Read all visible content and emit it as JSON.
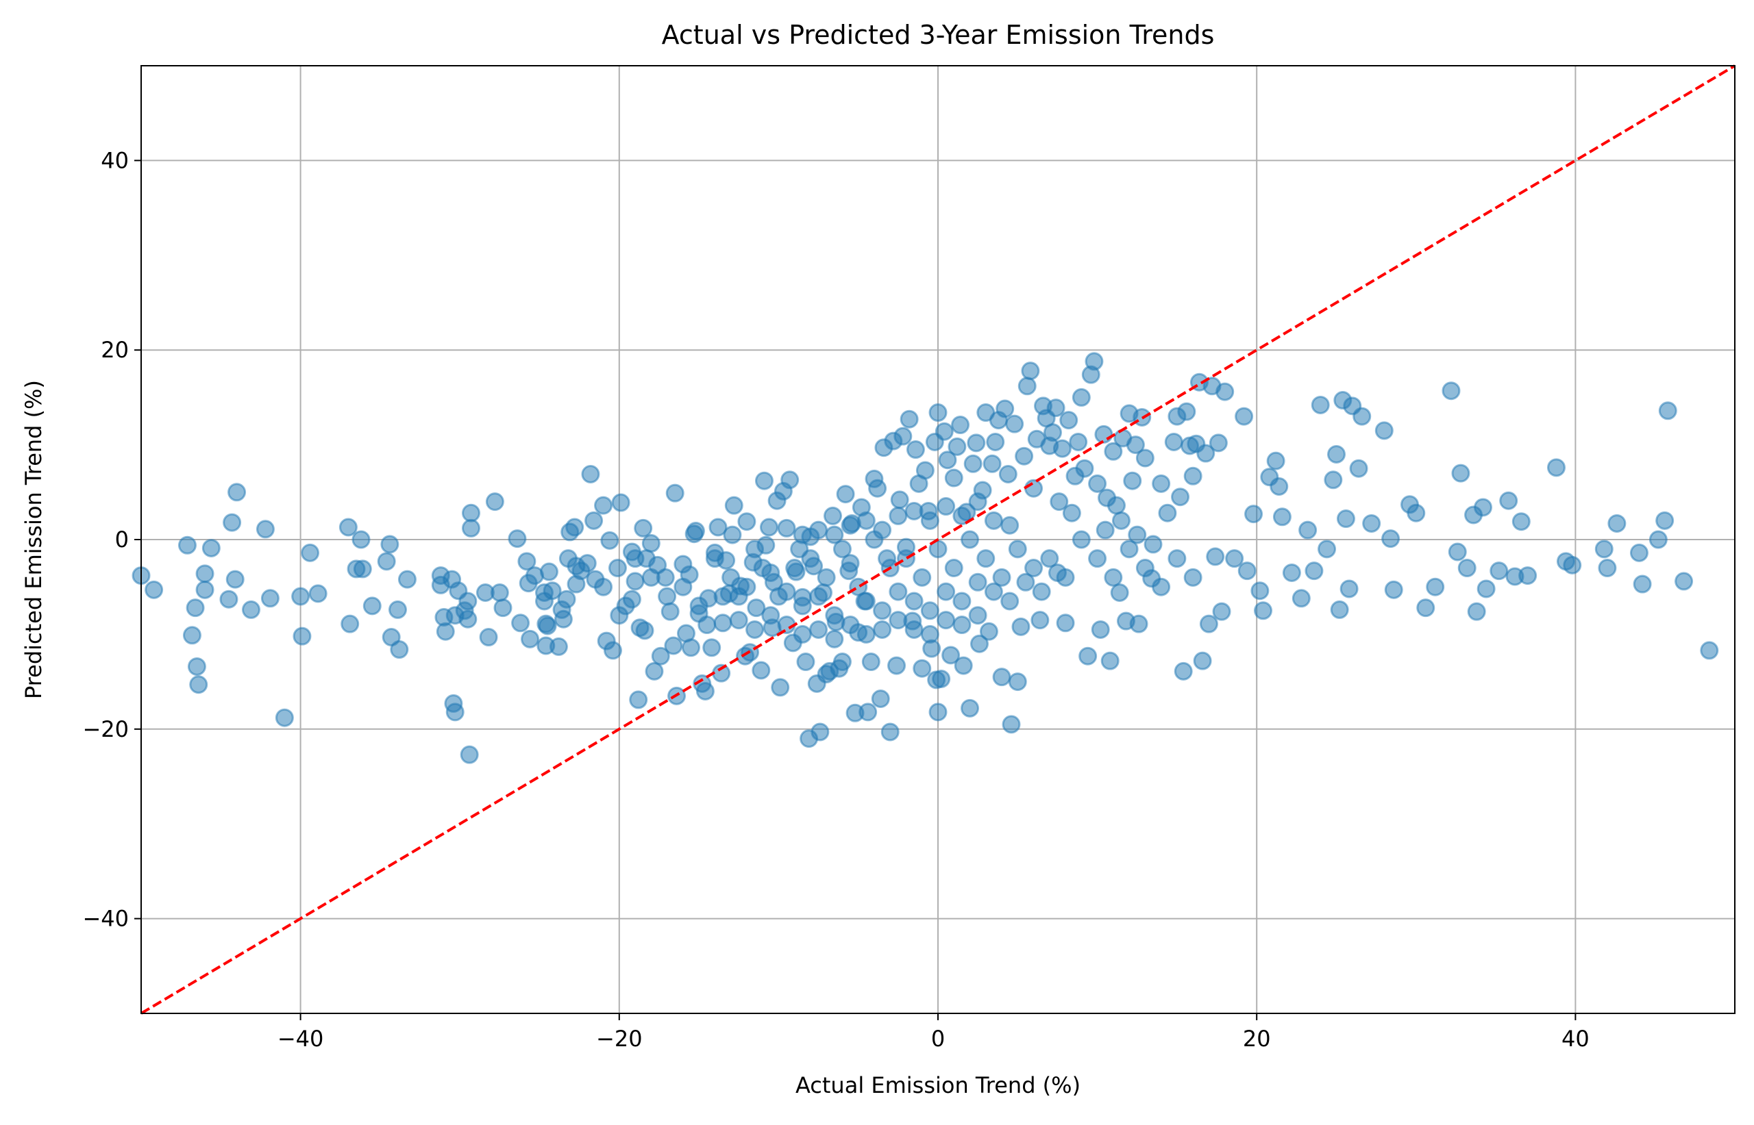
{
  "chart_data": {
    "type": "scatter",
    "title": "Actual vs Predicted 3-Year Emission Trends",
    "xlabel": "Actual Emission Trend (%)",
    "ylabel": "Predicted Emission Trend (%)",
    "xlim": [
      -50,
      50
    ],
    "ylim": [
      -50,
      50
    ],
    "xticks": [
      -40,
      -20,
      0,
      20,
      40
    ],
    "yticks": [
      -40,
      -20,
      0,
      20,
      40
    ],
    "xtick_labels": [
      "−40",
      "−20",
      "0",
      "20",
      "40"
    ],
    "ytick_labels": [
      "−40",
      "−20",
      "0",
      "20",
      "40"
    ],
    "grid": true,
    "marker_color": "#1f77b4",
    "reference_line": {
      "from": [
        -50,
        -50
      ],
      "to": [
        50,
        50
      ],
      "color": "#ff0000",
      "style": "dashed"
    },
    "points": [
      [
        -50,
        -3.8
      ],
      [
        -49.2,
        -5.3
      ],
      [
        -47.1,
        -0.6
      ],
      [
        -46.8,
        -10.1
      ],
      [
        -46.6,
        -7.2
      ],
      [
        -46.5,
        -13.4
      ],
      [
        -46.4,
        -15.3
      ],
      [
        -46.0,
        -3.6
      ],
      [
        -46.0,
        -5.3
      ],
      [
        -45.6,
        -0.9
      ],
      [
        -44.5,
        -6.3
      ],
      [
        -44.3,
        1.8
      ],
      [
        -44.1,
        -4.2
      ],
      [
        -44.0,
        5.0
      ],
      [
        -43.1,
        -7.4
      ],
      [
        -42.2,
        1.1
      ],
      [
        -41.9,
        -6.2
      ],
      [
        -41.0,
        -18.8
      ],
      [
        -40.0,
        -6.0
      ],
      [
        -39.9,
        -10.2
      ],
      [
        -39.4,
        -1.4
      ],
      [
        -38.9,
        -5.7
      ],
      [
        -37.0,
        1.3
      ],
      [
        -36.9,
        -8.9
      ],
      [
        -36.5,
        -3.1
      ],
      [
        -36.2,
        0.0
      ],
      [
        -36.1,
        -3.1
      ],
      [
        -35.5,
        -7.0
      ],
      [
        -34.6,
        -2.3
      ],
      [
        -34.4,
        -0.5
      ],
      [
        -34.3,
        -10.3
      ],
      [
        -33.9,
        -7.4
      ],
      [
        -33.8,
        -11.6
      ],
      [
        -33.3,
        -4.2
      ],
      [
        -31.2,
        -3.8
      ],
      [
        -31.2,
        -4.8
      ],
      [
        -31.0,
        -8.2
      ],
      [
        -30.9,
        -9.7
      ],
      [
        -30.5,
        -4.2
      ],
      [
        -30.4,
        -17.3
      ],
      [
        -30.3,
        -18.2
      ],
      [
        -30.3,
        -8.0
      ],
      [
        -30.1,
        -5.4
      ],
      [
        -29.7,
        -7.5
      ],
      [
        -29.5,
        -8.4
      ],
      [
        -29.5,
        -6.5
      ],
      [
        -29.4,
        -22.7
      ],
      [
        -29.3,
        2.8
      ],
      [
        -29.3,
        1.2
      ],
      [
        -28.4,
        -5.6
      ],
      [
        -28.2,
        -10.3
      ],
      [
        -27.8,
        4.0
      ],
      [
        -27.5,
        -5.6
      ],
      [
        -27.3,
        -7.2
      ],
      [
        -26.4,
        0.1
      ],
      [
        -26.2,
        -8.8
      ],
      [
        -25.8,
        -2.3
      ],
      [
        -25.7,
        -4.6
      ],
      [
        -25.6,
        -10.5
      ],
      [
        -25.3,
        -3.8
      ],
      [
        -24.7,
        -6.5
      ],
      [
        -24.7,
        -5.6
      ],
      [
        -24.6,
        -8.9
      ],
      [
        -24.6,
        -11.2
      ],
      [
        -24.5,
        -9.1
      ],
      [
        -24.4,
        -3.4
      ],
      [
        -24.2,
        -5.4
      ],
      [
        -23.8,
        -11.3
      ],
      [
        -23.6,
        -7.4
      ],
      [
        -23.5,
        -8.4
      ],
      [
        -23.3,
        -6.3
      ],
      [
        -23.2,
        -2.0
      ],
      [
        -23.1,
        0.8
      ],
      [
        -22.8,
        1.3
      ],
      [
        -22.7,
        -4.7
      ],
      [
        -22.7,
        -2.8
      ],
      [
        -22.4,
        -3.3
      ],
      [
        -22.0,
        -2.5
      ],
      [
        -21.8,
        6.9
      ],
      [
        -21.6,
        2.0
      ],
      [
        -21.5,
        -4.2
      ],
      [
        -21.0,
        3.6
      ],
      [
        -20.8,
        -10.7
      ],
      [
        -20.6,
        -0.1
      ],
      [
        -20.4,
        -11.7
      ],
      [
        -20.1,
        -3.0
      ],
      [
        -19.9,
        3.9
      ],
      [
        -19.6,
        -7.0
      ],
      [
        -19.2,
        -6.3
      ],
      [
        -19.2,
        -1.3
      ],
      [
        -19.0,
        -4.4
      ],
      [
        -18.8,
        -16.9
      ],
      [
        -18.7,
        -9.3
      ],
      [
        -18.5,
        1.2
      ],
      [
        -18.4,
        -9.6
      ],
      [
        -18.3,
        -2.0
      ],
      [
        -18.0,
        -0.4
      ],
      [
        -17.8,
        -13.9
      ],
      [
        -17.6,
        -2.7
      ],
      [
        -17.4,
        -12.3
      ],
      [
        -17.1,
        -4.0
      ],
      [
        -16.8,
        -7.6
      ],
      [
        -16.6,
        -11.2
      ],
      [
        -16.5,
        4.9
      ],
      [
        -16.4,
        -16.5
      ],
      [
        -16.0,
        -2.6
      ],
      [
        -15.8,
        -9.9
      ],
      [
        -15.6,
        -3.7
      ],
      [
        -15.5,
        -11.4
      ],
      [
        -15.3,
        0.6
      ],
      [
        -15.2,
        0.9
      ],
      [
        -15.0,
        -7.8
      ],
      [
        -14.8,
        -15.2
      ],
      [
        -14.6,
        -16.0
      ],
      [
        -14.4,
        -6.2
      ],
      [
        -14.2,
        -11.4
      ],
      [
        -14.0,
        -1.4
      ],
      [
        -13.8,
        1.3
      ],
      [
        -13.6,
        -14.1
      ],
      [
        -13.5,
        -8.8
      ],
      [
        -13.3,
        -2.2
      ],
      [
        -13.1,
        -5.7
      ],
      [
        -12.9,
        0.5
      ],
      [
        -12.8,
        3.6
      ],
      [
        -12.4,
        -4.9
      ],
      [
        -12.1,
        -12.3
      ],
      [
        -12.0,
        1.9
      ],
      [
        -11.8,
        -11.9
      ],
      [
        -11.6,
        -2.4
      ],
      [
        -11.4,
        -7.2
      ],
      [
        -11.1,
        -13.8
      ],
      [
        -10.9,
        6.2
      ],
      [
        -10.8,
        -0.6
      ],
      [
        -10.6,
        1.3
      ],
      [
        -10.4,
        -9.3
      ],
      [
        -10.3,
        -4.5
      ],
      [
        -10.1,
        4.1
      ],
      [
        -9.9,
        -15.6
      ],
      [
        -9.7,
        5.1
      ],
      [
        -9.5,
        1.2
      ],
      [
        -9.3,
        6.3
      ],
      [
        -9.1,
        -10.9
      ],
      [
        -8.9,
        -3.4
      ],
      [
        -8.7,
        -1.0
      ],
      [
        -8.5,
        -6.1
      ],
      [
        -8.3,
        -12.9
      ],
      [
        -8.1,
        -21.0
      ],
      [
        -8.0,
        0.3
      ],
      [
        -7.8,
        -2.8
      ],
      [
        -7.6,
        -15.2
      ],
      [
        -7.4,
        -20.3
      ],
      [
        -7.2,
        -5.6
      ],
      [
        -7.0,
        -14.2
      ],
      [
        -6.8,
        -13.9
      ],
      [
        -6.6,
        2.5
      ],
      [
        -6.4,
        -8.7
      ],
      [
        -6.2,
        -13.6
      ],
      [
        -6.0,
        -12.9
      ],
      [
        -5.8,
        4.8
      ],
      [
        -5.6,
        -3.3
      ],
      [
        -5.4,
        1.7
      ],
      [
        -5.2,
        -18.3
      ],
      [
        -5.0,
        -9.8
      ],
      [
        -4.8,
        3.4
      ],
      [
        -4.6,
        -6.5
      ],
      [
        -4.4,
        -18.2
      ],
      [
        -4.2,
        -12.9
      ],
      [
        -4.0,
        6.4
      ],
      [
        -3.8,
        5.4
      ],
      [
        -3.6,
        -16.8
      ],
      [
        -3.4,
        9.7
      ],
      [
        -3.2,
        -2.0
      ],
      [
        -3.0,
        -20.3
      ],
      [
        -2.8,
        10.4
      ],
      [
        -2.6,
        -13.3
      ],
      [
        -2.4,
        4.2
      ],
      [
        -2.2,
        10.9
      ],
      [
        -2.0,
        -0.8
      ],
      [
        -1.8,
        12.7
      ],
      [
        -1.6,
        -8.6
      ],
      [
        -1.4,
        9.5
      ],
      [
        -1.2,
        5.9
      ],
      [
        -1.0,
        -13.6
      ],
      [
        -0.8,
        7.3
      ],
      [
        -0.6,
        3.0
      ],
      [
        -0.4,
        -11.5
      ],
      [
        -0.2,
        10.3
      ],
      [
        0.0,
        13.4
      ],
      [
        0.0,
        -18.2
      ],
      [
        -0.1,
        -14.8
      ],
      [
        0.2,
        -14.7
      ],
      [
        0.4,
        11.4
      ],
      [
        0.6,
        8.4
      ],
      [
        0.8,
        -12.2
      ],
      [
        1.0,
        6.5
      ],
      [
        1.2,
        9.8
      ],
      [
        1.4,
        12.1
      ],
      [
        1.6,
        -13.3
      ],
      [
        1.8,
        2.9
      ],
      [
        2.0,
        -17.8
      ],
      [
        2.2,
        8.0
      ],
      [
        2.4,
        10.2
      ],
      [
        2.6,
        -11.0
      ],
      [
        2.8,
        5.2
      ],
      [
        3.0,
        13.4
      ],
      [
        3.2,
        -9.7
      ],
      [
        3.4,
        8.0
      ],
      [
        3.6,
        10.3
      ],
      [
        3.8,
        12.6
      ],
      [
        4.0,
        -14.5
      ],
      [
        4.2,
        13.8
      ],
      [
        4.4,
        6.9
      ],
      [
        4.6,
        -19.5
      ],
      [
        4.8,
        12.2
      ],
      [
        5.0,
        -15.0
      ],
      [
        5.2,
        -9.2
      ],
      [
        5.4,
        8.8
      ],
      [
        5.6,
        16.2
      ],
      [
        5.8,
        17.8
      ],
      [
        6.0,
        5.4
      ],
      [
        6.2,
        10.6
      ],
      [
        6.4,
        -8.5
      ],
      [
        6.6,
        14.1
      ],
      [
        6.8,
        12.8
      ],
      [
        7.0,
        9.9
      ],
      [
        7.2,
        11.3
      ],
      [
        7.4,
        13.9
      ],
      [
        7.6,
        4.0
      ],
      [
        7.8,
        9.6
      ],
      [
        8.0,
        -8.8
      ],
      [
        8.2,
        12.6
      ],
      [
        8.4,
        2.8
      ],
      [
        8.6,
        6.7
      ],
      [
        8.8,
        10.3
      ],
      [
        9.0,
        15.0
      ],
      [
        9.2,
        7.5
      ],
      [
        9.4,
        -12.3
      ],
      [
        9.6,
        17.4
      ],
      [
        9.8,
        18.8
      ],
      [
        10.0,
        5.9
      ],
      [
        10.2,
        -9.5
      ],
      [
        10.4,
        11.1
      ],
      [
        10.6,
        4.4
      ],
      [
        10.8,
        -12.8
      ],
      [
        11.0,
        9.3
      ],
      [
        11.2,
        3.6
      ],
      [
        11.4,
        -5.6
      ],
      [
        11.6,
        10.7
      ],
      [
        11.8,
        -8.6
      ],
      [
        12.0,
        13.3
      ],
      [
        12.2,
        6.2
      ],
      [
        12.4,
        10.0
      ],
      [
        12.6,
        -8.9
      ],
      [
        12.8,
        12.9
      ],
      [
        13.0,
        8.6
      ],
      [
        13.4,
        -4.1
      ],
      [
        14.0,
        5.9
      ],
      [
        14.4,
        2.8
      ],
      [
        14.8,
        10.3
      ],
      [
        15.0,
        13.0
      ],
      [
        15.2,
        4.5
      ],
      [
        15.4,
        -13.9
      ],
      [
        15.6,
        13.5
      ],
      [
        15.8,
        9.9
      ],
      [
        16.0,
        6.7
      ],
      [
        16.2,
        10.1
      ],
      [
        16.4,
        16.6
      ],
      [
        16.6,
        -12.8
      ],
      [
        16.8,
        9.1
      ],
      [
        17.0,
        -8.9
      ],
      [
        17.2,
        16.2
      ],
      [
        17.4,
        -1.8
      ],
      [
        17.6,
        10.2
      ],
      [
        17.8,
        -7.6
      ],
      [
        18.0,
        15.6
      ],
      [
        18.6,
        -2.0
      ],
      [
        19.2,
        13.0
      ],
      [
        19.4,
        -3.3
      ],
      [
        19.8,
        2.7
      ],
      [
        20.2,
        -5.4
      ],
      [
        20.4,
        -7.5
      ],
      [
        20.8,
        6.6
      ],
      [
        21.2,
        8.3
      ],
      [
        21.4,
        5.6
      ],
      [
        21.6,
        2.4
      ],
      [
        22.2,
        -3.5
      ],
      [
        22.8,
        -6.2
      ],
      [
        23.2,
        1.0
      ],
      [
        23.6,
        -3.3
      ],
      [
        24.0,
        14.2
      ],
      [
        24.4,
        -1.0
      ],
      [
        24.8,
        6.3
      ],
      [
        25.0,
        9.0
      ],
      [
        25.2,
        -7.4
      ],
      [
        25.4,
        14.7
      ],
      [
        25.6,
        2.2
      ],
      [
        25.8,
        -5.2
      ],
      [
        26.0,
        14.1
      ],
      [
        26.4,
        7.5
      ],
      [
        26.6,
        13.0
      ],
      [
        27.2,
        1.7
      ],
      [
        28.0,
        11.5
      ],
      [
        28.4,
        0.1
      ],
      [
        28.6,
        -5.3
      ],
      [
        29.6,
        3.7
      ],
      [
        30.0,
        2.8
      ],
      [
        30.6,
        -7.2
      ],
      [
        31.2,
        -5.0
      ],
      [
        32.2,
        15.7
      ],
      [
        32.6,
        -1.3
      ],
      [
        32.8,
        7.0
      ],
      [
        33.2,
        -3.0
      ],
      [
        33.6,
        2.6
      ],
      [
        33.8,
        -7.6
      ],
      [
        34.2,
        3.4
      ],
      [
        34.4,
        -5.2
      ],
      [
        35.2,
        -3.3
      ],
      [
        35.8,
        4.1
      ],
      [
        36.2,
        -3.9
      ],
      [
        36.6,
        1.9
      ],
      [
        37.0,
        -3.8
      ],
      [
        38.8,
        7.6
      ],
      [
        39.4,
        -2.3
      ],
      [
        39.8,
        -2.7
      ],
      [
        41.8,
        -1.0
      ],
      [
        42.0,
        -3.0
      ],
      [
        42.6,
        1.7
      ],
      [
        44.0,
        -1.4
      ],
      [
        44.2,
        -4.7
      ],
      [
        45.2,
        0.0
      ],
      [
        45.6,
        2.0
      ],
      [
        45.8,
        13.6
      ],
      [
        46.8,
        -4.4
      ],
      [
        48.4,
        -11.7
      ],
      [
        -9.0,
        -3.0
      ],
      [
        -8.0,
        -2.0
      ],
      [
        -7.0,
        -4.0
      ],
      [
        -6.0,
        -1.0
      ],
      [
        -5.0,
        -5.0
      ],
      [
        -4.0,
        0.0
      ],
      [
        -3.0,
        -3.0
      ],
      [
        -2.0,
        -2.0
      ],
      [
        -1.0,
        -4.0
      ],
      [
        0.0,
        -1.0
      ],
      [
        1.0,
        -3.0
      ],
      [
        2.0,
        0.0
      ],
      [
        3.0,
        -2.0
      ],
      [
        4.0,
        -4.0
      ],
      [
        5.0,
        -1.0
      ],
      [
        6.0,
        -3.0
      ],
      [
        7.0,
        -2.0
      ],
      [
        8.0,
        -4.0
      ],
      [
        -12.0,
        -5.0
      ],
      [
        -11.0,
        -3.0
      ],
      [
        -10.0,
        -6.0
      ],
      [
        -8.5,
        -7.0
      ],
      [
        -7.5,
        -6.0
      ],
      [
        -6.5,
        -8.0
      ],
      [
        -5.5,
        -2.5
      ],
      [
        -4.5,
        -6.5
      ],
      [
        -3.5,
        -7.5
      ],
      [
        -2.5,
        -5.5
      ],
      [
        -1.5,
        -6.5
      ],
      [
        -0.5,
        -7.5
      ],
      [
        0.5,
        -5.5
      ],
      [
        1.5,
        -6.5
      ],
      [
        2.5,
        -4.5
      ],
      [
        3.5,
        -5.5
      ],
      [
        4.5,
        -6.5
      ],
      [
        5.5,
        -4.5
      ],
      [
        6.5,
        -5.5
      ],
      [
        7.5,
        -3.5
      ],
      [
        -14.0,
        -2.0
      ],
      [
        -13.0,
        -4.0
      ],
      [
        -12.5,
        -6.0
      ],
      [
        -11.5,
        -1.0
      ],
      [
        -10.5,
        -3.5
      ],
      [
        -9.5,
        -5.5
      ],
      [
        -8.5,
        0.5
      ],
      [
        -7.5,
        1.0
      ],
      [
        -6.5,
        0.5
      ],
      [
        -5.5,
        1.5
      ],
      [
        -4.5,
        2.0
      ],
      [
        -3.5,
        1.0
      ],
      [
        -2.5,
        2.5
      ],
      [
        -1.5,
        3.0
      ],
      [
        -0.5,
        2.0
      ],
      [
        0.5,
        3.5
      ],
      [
        1.5,
        2.5
      ],
      [
        2.5,
        4.0
      ],
      [
        3.5,
        2.0
      ],
      [
        4.5,
        1.5
      ],
      [
        -16.0,
        -5.0
      ],
      [
        -15.0,
        -7.0
      ],
      [
        -14.5,
        -9.0
      ],
      [
        -13.5,
        -6.0
      ],
      [
        -12.5,
        -8.5
      ],
      [
        -11.5,
        -9.5
      ],
      [
        -10.5,
        -8.0
      ],
      [
        -9.5,
        -9.0
      ],
      [
        -8.5,
        -10.0
      ],
      [
        -7.5,
        -9.5
      ],
      [
        -6.5,
        -10.5
      ],
      [
        -5.5,
        -9.0
      ],
      [
        -4.5,
        -10.0
      ],
      [
        -3.5,
        -9.5
      ],
      [
        -2.5,
        -8.5
      ],
      [
        -1.5,
        -9.5
      ],
      [
        -0.5,
        -10.0
      ],
      [
        0.5,
        -8.5
      ],
      [
        1.5,
        -9.0
      ],
      [
        2.5,
        -8.0
      ],
      [
        10.0,
        -2.0
      ],
      [
        11.0,
        -4.0
      ],
      [
        12.0,
        -1.0
      ],
      [
        13.0,
        -3.0
      ],
      [
        14.0,
        -5.0
      ],
      [
        15.0,
        -2.0
      ],
      [
        16.0,
        -4.0
      ],
      [
        9.0,
        0.0
      ],
      [
        10.5,
        1.0
      ],
      [
        11.5,
        2.0
      ],
      [
        12.5,
        0.5
      ],
      [
        13.5,
        -0.5
      ],
      [
        -18.0,
        -4.0
      ],
      [
        -17.0,
        -6.0
      ],
      [
        -19.0,
        -2.0
      ],
      [
        -20.0,
        -8.0
      ],
      [
        -21.0,
        -5.0
      ]
    ]
  }
}
